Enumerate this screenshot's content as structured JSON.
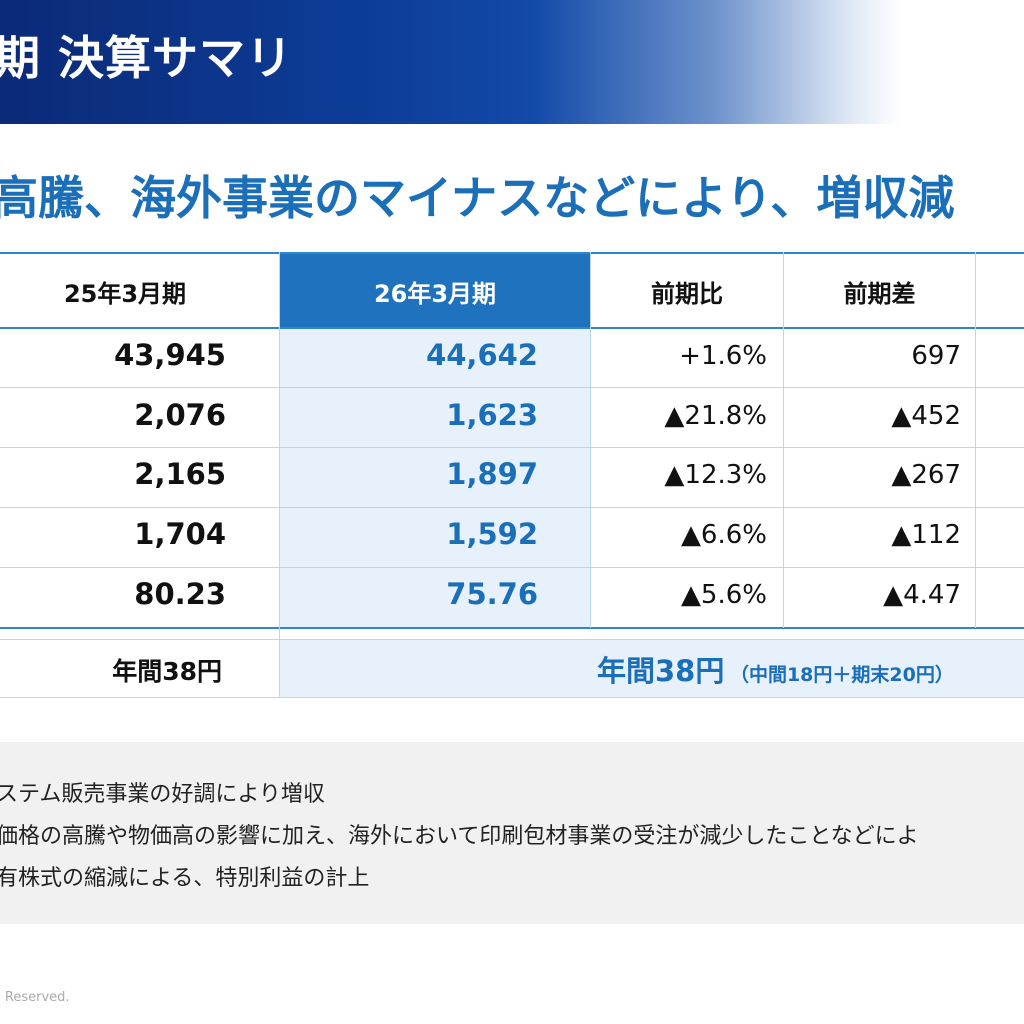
{
  "header": {
    "title": "期 決算サマリ"
  },
  "headline": "高騰、海外事業のマイナスなどにより、増収減",
  "table": {
    "columns": [
      "25年3月期",
      "26年3月期",
      "前期比",
      "前期差"
    ],
    "rows": [
      {
        "prev": "43,945",
        "curr": "44,642",
        "ratio": "+1.6%",
        "diff": "697"
      },
      {
        "prev": "2,076",
        "curr": "1,623",
        "ratio": "▲21.8%",
        "diff": "▲452"
      },
      {
        "prev": "2,165",
        "curr": "1,897",
        "ratio": "▲12.3%",
        "diff": "▲267"
      },
      {
        "prev": "1,704",
        "curr": "1,592",
        "ratio": "▲6.6%",
        "diff": "▲112"
      },
      {
        "prev": "80.23",
        "curr": "75.76",
        "ratio": "▲5.6%",
        "diff": "▲4.47"
      }
    ],
    "dividend": {
      "prev": "年間38円",
      "curr_main": "年間38円",
      "curr_detail": "（中間18円＋期末20円）"
    }
  },
  "notes": [
    "ステム販売事業の好調により増収",
    "価格の高騰や物価高の影響に加え、海外において印刷包材事業の受注が減少したことなどによ",
    "有株式の縮減による、特別利益の計上"
  ],
  "footer": "s Reserved.",
  "colors": {
    "brand_dark": "#0b2a78",
    "accent": "#1b6fb8",
    "highlight": "#e6f1fb"
  }
}
